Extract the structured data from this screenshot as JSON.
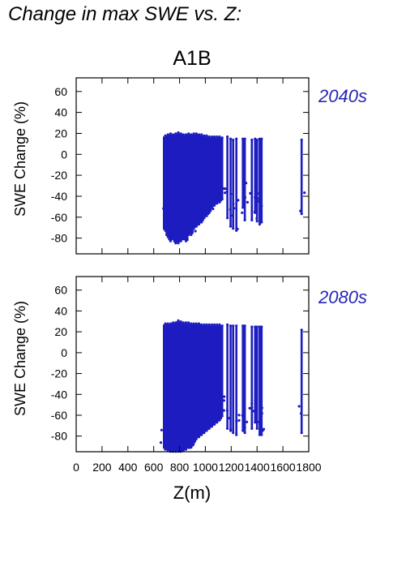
{
  "figure": {
    "title": "Change in max SWE vs. Z:",
    "scenario": "A1B"
  },
  "colors": {
    "points": "#1c1cc0",
    "period_label": "#2626b4",
    "axis": "#000000"
  },
  "chart_data": [
    {
      "type": "scatter",
      "panel_label": "2040s",
      "ylabel": "SWE Change (%)",
      "xlabel": "",
      "xlim": [
        0,
        1800
      ],
      "ylim": [
        -95,
        73
      ],
      "xticks": [
        0,
        200,
        400,
        600,
        800,
        1000,
        1200,
        1400,
        1600,
        1800
      ],
      "yticks": [
        -80,
        -60,
        -40,
        -20,
        0,
        20,
        40,
        60
      ],
      "x_tick_labels_shown": false,
      "grid": false,
      "columns": [
        {
          "x": 690,
          "min": -72,
          "max": 17,
          "dense": true
        },
        {
          "x": 710,
          "min": -78,
          "max": 18,
          "dense": true
        },
        {
          "x": 730,
          "min": -82,
          "max": 19,
          "dense": true
        },
        {
          "x": 750,
          "min": -80,
          "max": 18,
          "dense": true
        },
        {
          "x": 770,
          "min": -84,
          "max": 19,
          "dense": true
        },
        {
          "x": 790,
          "min": -84,
          "max": 20,
          "dense": true
        },
        {
          "x": 810,
          "min": -82,
          "max": 19,
          "dense": true
        },
        {
          "x": 830,
          "min": -80,
          "max": 18,
          "dense": true
        },
        {
          "x": 850,
          "min": -82,
          "max": 18,
          "dense": true
        },
        {
          "x": 870,
          "min": -76,
          "max": 19,
          "dense": true
        },
        {
          "x": 890,
          "min": -76,
          "max": 18,
          "dense": true
        },
        {
          "x": 910,
          "min": -70,
          "max": 19,
          "dense": true
        },
        {
          "x": 930,
          "min": -68,
          "max": 19,
          "dense": true
        },
        {
          "x": 950,
          "min": -66,
          "max": 18,
          "dense": true
        },
        {
          "x": 970,
          "min": -64,
          "max": 18,
          "dense": true
        },
        {
          "x": 990,
          "min": -60,
          "max": 17,
          "dense": true
        },
        {
          "x": 1010,
          "min": -58,
          "max": 17,
          "dense": true
        },
        {
          "x": 1030,
          "min": -55,
          "max": 16,
          "dense": true
        },
        {
          "x": 1050,
          "min": -50,
          "max": 16,
          "dense": true
        },
        {
          "x": 1070,
          "min": -48,
          "max": 16,
          "dense": true
        },
        {
          "x": 1090,
          "min": -46,
          "max": 16,
          "dense": true
        },
        {
          "x": 1110,
          "min": -45,
          "max": 16,
          "dense": true
        },
        {
          "x": 1130,
          "min": -42,
          "max": 15,
          "dense": false
        },
        {
          "x": 1170,
          "min": -60,
          "max": 16,
          "dense": false
        },
        {
          "x": 1195,
          "min": -68,
          "max": 14,
          "dense": false
        },
        {
          "x": 1215,
          "min": -70,
          "max": 13,
          "dense": false
        },
        {
          "x": 1240,
          "min": -72,
          "max": 14,
          "dense": false
        },
        {
          "x": 1290,
          "min": -50,
          "max": 14,
          "dense": false
        },
        {
          "x": 1305,
          "min": -62,
          "max": 14,
          "dense": false
        },
        {
          "x": 1360,
          "min": -62,
          "max": 13,
          "dense": false
        },
        {
          "x": 1385,
          "min": -55,
          "max": 14,
          "dense": false
        },
        {
          "x": 1400,
          "min": -63,
          "max": 13,
          "dense": false
        },
        {
          "x": 1420,
          "min": -66,
          "max": 14,
          "dense": false
        },
        {
          "x": 1435,
          "min": -64,
          "max": 14,
          "dense": false
        },
        {
          "x": 1745,
          "min": -56,
          "max": 13,
          "dense": false
        }
      ]
    },
    {
      "type": "scatter",
      "panel_label": "2080s",
      "ylabel": "SWE Change (%)",
      "xlabel": "Z(m)",
      "xlim": [
        0,
        1800
      ],
      "ylim": [
        -95,
        73
      ],
      "xticks": [
        0,
        200,
        400,
        600,
        800,
        1000,
        1200,
        1400,
        1600,
        1800
      ],
      "yticks": [
        -80,
        -60,
        -40,
        -20,
        0,
        20,
        40,
        60
      ],
      "x_tick_labels_shown": true,
      "grid": false,
      "columns": [
        {
          "x": 690,
          "min": -92,
          "max": 27,
          "dense": true
        },
        {
          "x": 710,
          "min": -93,
          "max": 27,
          "dense": true
        },
        {
          "x": 730,
          "min": -94,
          "max": 27,
          "dense": true
        },
        {
          "x": 750,
          "min": -94,
          "max": 28,
          "dense": true
        },
        {
          "x": 770,
          "min": -94,
          "max": 28,
          "dense": true
        },
        {
          "x": 790,
          "min": -94,
          "max": 30,
          "dense": true
        },
        {
          "x": 810,
          "min": -94,
          "max": 29,
          "dense": true
        },
        {
          "x": 830,
          "min": -93,
          "max": 28,
          "dense": true
        },
        {
          "x": 850,
          "min": -92,
          "max": 28,
          "dense": true
        },
        {
          "x": 870,
          "min": -90,
          "max": 28,
          "dense": true
        },
        {
          "x": 890,
          "min": -90,
          "max": 27,
          "dense": true
        },
        {
          "x": 910,
          "min": -86,
          "max": 27,
          "dense": true
        },
        {
          "x": 930,
          "min": -82,
          "max": 27,
          "dense": true
        },
        {
          "x": 950,
          "min": -80,
          "max": 27,
          "dense": true
        },
        {
          "x": 970,
          "min": -78,
          "max": 26,
          "dense": true
        },
        {
          "x": 990,
          "min": -76,
          "max": 26,
          "dense": true
        },
        {
          "x": 1010,
          "min": -74,
          "max": 26,
          "dense": true
        },
        {
          "x": 1030,
          "min": -72,
          "max": 26,
          "dense": true
        },
        {
          "x": 1050,
          "min": -70,
          "max": 26,
          "dense": true
        },
        {
          "x": 1070,
          "min": -68,
          "max": 26,
          "dense": true
        },
        {
          "x": 1090,
          "min": -66,
          "max": 26,
          "dense": true
        },
        {
          "x": 1110,
          "min": -64,
          "max": 26,
          "dense": true
        },
        {
          "x": 1130,
          "min": -60,
          "max": 25,
          "dense": false
        },
        {
          "x": 1170,
          "min": -72,
          "max": 26,
          "dense": false
        },
        {
          "x": 1195,
          "min": -74,
          "max": 25,
          "dense": false
        },
        {
          "x": 1215,
          "min": -76,
          "max": 25,
          "dense": false
        },
        {
          "x": 1240,
          "min": -78,
          "max": 25,
          "dense": false
        },
        {
          "x": 1290,
          "min": -74,
          "max": 25,
          "dense": false
        },
        {
          "x": 1305,
          "min": -76,
          "max": 25,
          "dense": false
        },
        {
          "x": 1360,
          "min": -72,
          "max": 24,
          "dense": false
        },
        {
          "x": 1385,
          "min": -66,
          "max": 24,
          "dense": false
        },
        {
          "x": 1400,
          "min": -72,
          "max": 24,
          "dense": false
        },
        {
          "x": 1420,
          "min": -78,
          "max": 24,
          "dense": false
        },
        {
          "x": 1435,
          "min": -78,
          "max": 24,
          "dense": false
        },
        {
          "x": 1745,
          "min": -76,
          "max": 21,
          "dense": false
        }
      ]
    }
  ]
}
